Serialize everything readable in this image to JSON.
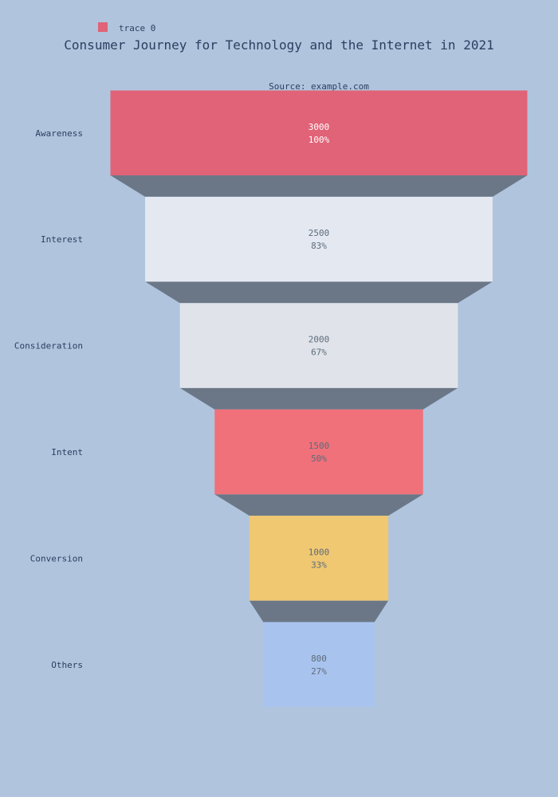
{
  "chart_data": {
    "type": "funnel",
    "title": "Consumer Journey for Technology and the Internet in 2021",
    "subtitle": "Source: example.com",
    "legend": {
      "label": "trace 0",
      "color": "#e06377",
      "placement": "top-left"
    },
    "categories": [
      "Awareness",
      "Interest",
      "Consideration",
      "Intent",
      "Conversion",
      "Others"
    ],
    "values": [
      3000,
      2500,
      2000,
      1500,
      1000,
      800
    ],
    "percent_labels": [
      "100%",
      "83%",
      "67%",
      "50%",
      "33%",
      "27%"
    ],
    "bar_colors": [
      "#e06377",
      "#e4e9f1",
      "#e0e4ea",
      "#f0717a",
      "#f0c872",
      "#a8c4ee"
    ],
    "label_colors": [
      "#ffffff",
      "#5f6b7a",
      "#5f6b7a",
      "#5f6b7a",
      "#5f6b7a",
      "#5f6b7a"
    ],
    "connector_color": "#6b7787",
    "background": "#b0c4de"
  }
}
